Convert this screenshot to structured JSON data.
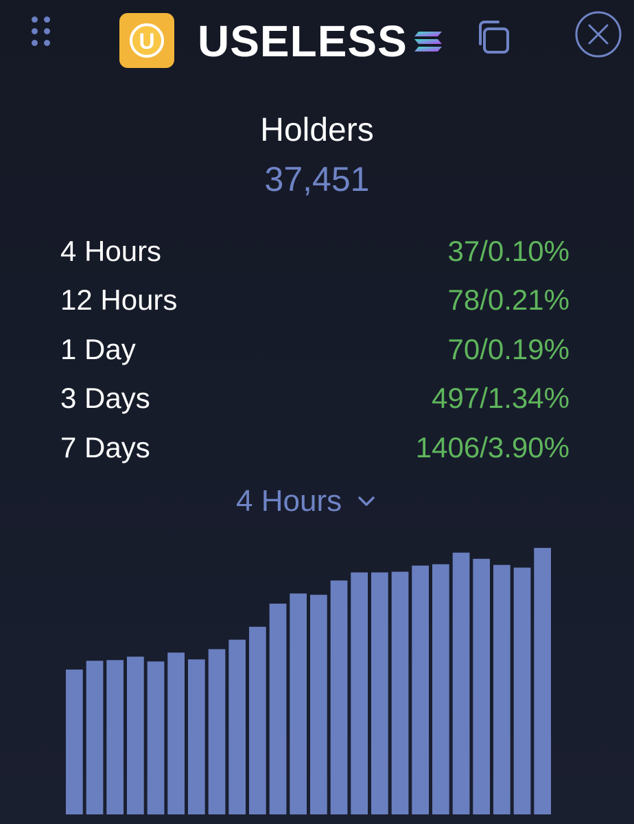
{
  "header": {
    "token_name": "USELESS",
    "logo_letter": "U",
    "icons": {
      "grip": "grip-dots-icon",
      "chain": "solana-icon",
      "copy": "copy-icon",
      "close": "close-icon"
    }
  },
  "holders": {
    "label": "Holders",
    "value": "37,451"
  },
  "stats": [
    {
      "label": "4 Hours",
      "value": "37/0.10%"
    },
    {
      "label": "12 Hours",
      "value": "78/0.21%"
    },
    {
      "label": "1 Day",
      "value": "70/0.19%"
    },
    {
      "label": "3 Days",
      "value": "497/1.34%"
    },
    {
      "label": "7 Days",
      "value": "1406/3.90%"
    }
  ],
  "timeframe": {
    "selected": "4 Hours"
  },
  "colors": {
    "accent": "#6f84c6",
    "positive": "#5fb65c",
    "bar": "#6a7fc0",
    "logo": "#f4b63a"
  },
  "chart_data": {
    "type": "bar",
    "values": [
      213,
      226,
      227,
      232,
      225,
      238,
      228,
      243,
      257,
      276,
      310,
      325,
      323,
      344,
      356,
      356,
      357,
      366,
      368,
      385,
      376,
      367,
      363,
      392
    ],
    "ylim": [
      0,
      400
    ],
    "grid": false,
    "legend": "none"
  }
}
